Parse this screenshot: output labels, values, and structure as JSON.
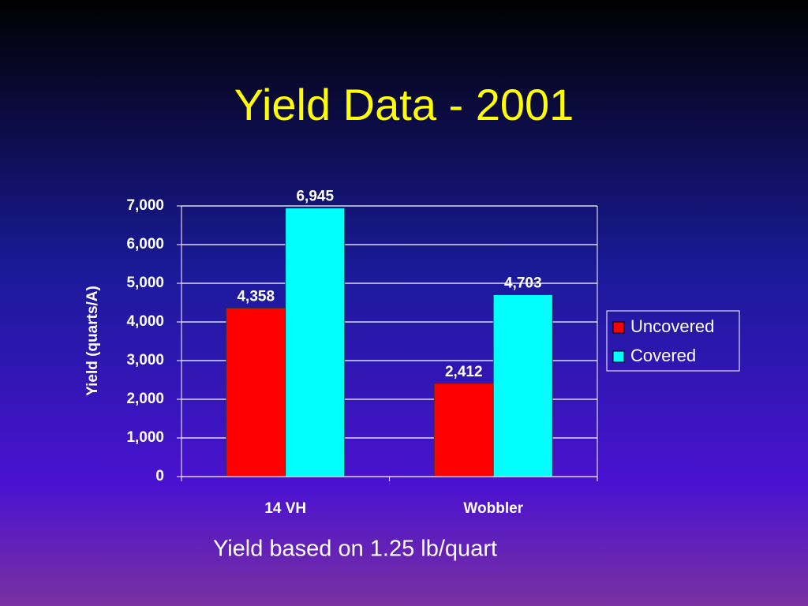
{
  "chart_data": {
    "type": "bar",
    "title": "Yield Data - 2001",
    "y_label": "Yield (quarts/A)",
    "caption": "Yield based on 1.25 lb/quart",
    "categories": [
      "14 VH",
      "Wobbler"
    ],
    "series": [
      {
        "name": "Uncovered",
        "color": "#ff0000",
        "values": [
          4358,
          2412
        ],
        "value_labels": [
          "4,358",
          "2,412"
        ]
      },
      {
        "name": "Covered",
        "color": "#00ffff",
        "values": [
          6945,
          4703
        ],
        "value_labels": [
          "6,945",
          "4,703"
        ]
      }
    ],
    "ylim": [
      0,
      7000
    ],
    "yticks": [
      0,
      {
        "value": 1000,
        "label": "1,000"
      },
      {
        "value": 2000,
        "label": "2,000"
      },
      {
        "value": 3000,
        "label": "3,000"
      },
      {
        "value": 4000,
        "label": "4,000"
      },
      {
        "value": 5000,
        "label": "5,000"
      },
      {
        "value": 6000,
        "label": "6,000"
      },
      {
        "value": 7000,
        "label": "7,000"
      }
    ],
    "grid": true,
    "legend": "right"
  }
}
